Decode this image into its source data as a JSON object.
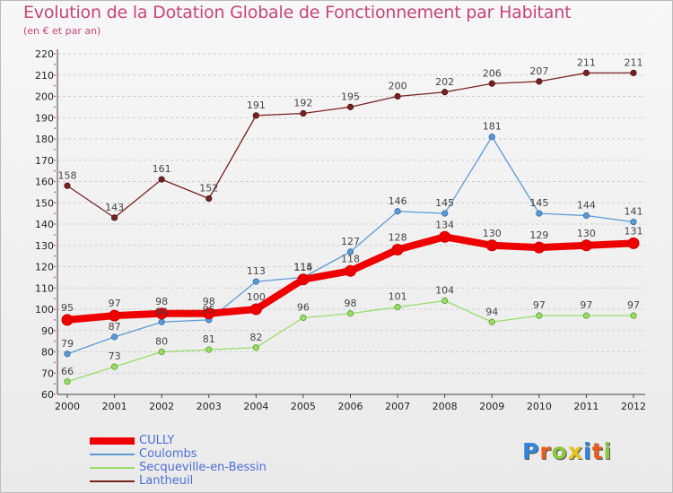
{
  "header": {
    "title": "Evolution de la Dotation Globale de Fonctionnement par Habitant",
    "subtitle": "(en € et par an)"
  },
  "chart_data": {
    "type": "line",
    "title": "Evolution de la Dotation Globale de Fonctionnement par Habitant",
    "subtitle": "(en € et par an)",
    "x": [
      2000,
      2001,
      2002,
      2003,
      2004,
      2005,
      2006,
      2007,
      2008,
      2009,
      2010,
      2011,
      2012
    ],
    "ylim": [
      60,
      220
    ],
    "ystep": 10,
    "grid": "horizontal-dashed",
    "legend_position": "bottom-left",
    "series": [
      {
        "name": "CULLY",
        "color": "#ee0000",
        "values": [
          95,
          97,
          98,
          98,
          100,
          114,
          118,
          128,
          134,
          130,
          129,
          130,
          131
        ]
      },
      {
        "name": "Coulombs",
        "color": "#5b9bd5",
        "values": [
          79,
          87,
          94,
          95,
          113,
          115,
          127,
          146,
          145,
          181,
          145,
          144,
          141
        ]
      },
      {
        "name": "Secqueville-en-Bessin",
        "color": "#99dd66",
        "values": [
          66,
          73,
          80,
          81,
          82,
          96,
          98,
          101,
          104,
          94,
          97,
          97,
          97
        ]
      },
      {
        "name": "Lantheuil",
        "color": "#772222",
        "values": [
          158,
          143,
          161,
          152,
          191,
          192,
          195,
          200,
          202,
          206,
          207,
          211,
          211
        ]
      }
    ]
  },
  "legend": {
    "items": [
      {
        "label": "CULLY",
        "color": "#ee0000"
      },
      {
        "label": "Coulombs",
        "color": "#5b9bd5"
      },
      {
        "label": "Secqueville-en-Bessin",
        "color": "#99dd66"
      },
      {
        "label": "Lantheuil",
        "color": "#772222"
      }
    ]
  },
  "logo": {
    "text": "Proxiti",
    "letter_colors": [
      "#2e86de",
      "#e85d1f",
      "#8dc63f",
      "#e8c21f",
      "#2e86de",
      "#e85d1f",
      "#8dc63f"
    ]
  }
}
